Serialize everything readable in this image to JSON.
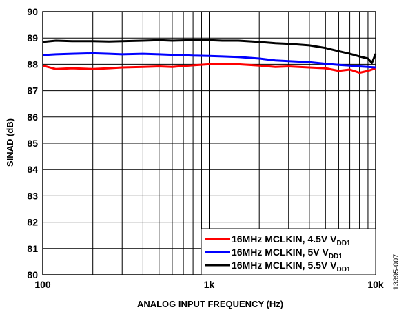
{
  "figure_id": "13395-007",
  "chart_data": {
    "type": "line",
    "xlabel": "ANALOG INPUT FREQUENCY (Hz)",
    "ylabel": "SINAD (dB)",
    "xscale": "log",
    "xlim": [
      100,
      10000
    ],
    "ylim": [
      80,
      90
    ],
    "xticks": [
      100,
      1000,
      10000
    ],
    "xtick_labels": [
      "100",
      "1k",
      "10k"
    ],
    "yticks": [
      80,
      81,
      82,
      83,
      84,
      85,
      86,
      87,
      88,
      89,
      90
    ],
    "ytick_labels": [
      "80",
      "81",
      "82",
      "83",
      "84",
      "85",
      "86",
      "87",
      "88",
      "89",
      "90"
    ],
    "grid": true,
    "legend_position": "bottom-right",
    "series": [
      {
        "name": "16MHz MCLKIN, 4.5V V",
        "name_sub": "DD1",
        "color": "#ff0000",
        "x": [
          100,
          120,
          150,
          200,
          250,
          300,
          400,
          500,
          600,
          800,
          1000,
          1200,
          1500,
          2000,
          2500,
          3000,
          4000,
          5000,
          6000,
          7000,
          8000,
          9000,
          10000
        ],
        "y": [
          87.95,
          87.82,
          87.85,
          87.82,
          87.85,
          87.88,
          87.9,
          87.92,
          87.9,
          87.96,
          88.0,
          88.02,
          88.0,
          87.95,
          87.9,
          87.92,
          87.88,
          87.85,
          87.75,
          87.8,
          87.68,
          87.75,
          87.85
        ]
      },
      {
        "name": "16MHz MCLKIN, 5V V",
        "name_sub": "DD1",
        "color": "#0000ff",
        "x": [
          100,
          120,
          150,
          200,
          250,
          300,
          400,
          500,
          600,
          800,
          1000,
          1200,
          1500,
          2000,
          2500,
          3000,
          4000,
          5000,
          6000,
          7000,
          8000,
          9000,
          10000
        ],
        "y": [
          88.35,
          88.38,
          88.4,
          88.42,
          88.4,
          88.38,
          88.4,
          88.38,
          88.36,
          88.33,
          88.32,
          88.3,
          88.28,
          88.22,
          88.15,
          88.12,
          88.08,
          88.02,
          87.98,
          87.95,
          87.92,
          87.9,
          87.88
        ]
      },
      {
        "name": "16MHz MCLKIN, 5.5V V",
        "name_sub": "DD1",
        "color": "#000000",
        "x": [
          100,
          120,
          150,
          200,
          250,
          300,
          400,
          500,
          600,
          800,
          1000,
          1200,
          1500,
          2000,
          2500,
          3000,
          4000,
          5000,
          6000,
          7000,
          8000,
          9000,
          9500,
          10000
        ],
        "y": [
          88.85,
          88.9,
          88.88,
          88.88,
          88.87,
          88.88,
          88.9,
          88.92,
          88.9,
          88.92,
          88.92,
          88.9,
          88.9,
          88.85,
          88.8,
          88.78,
          88.72,
          88.62,
          88.5,
          88.4,
          88.3,
          88.22,
          88.05,
          88.4
        ]
      }
    ]
  }
}
